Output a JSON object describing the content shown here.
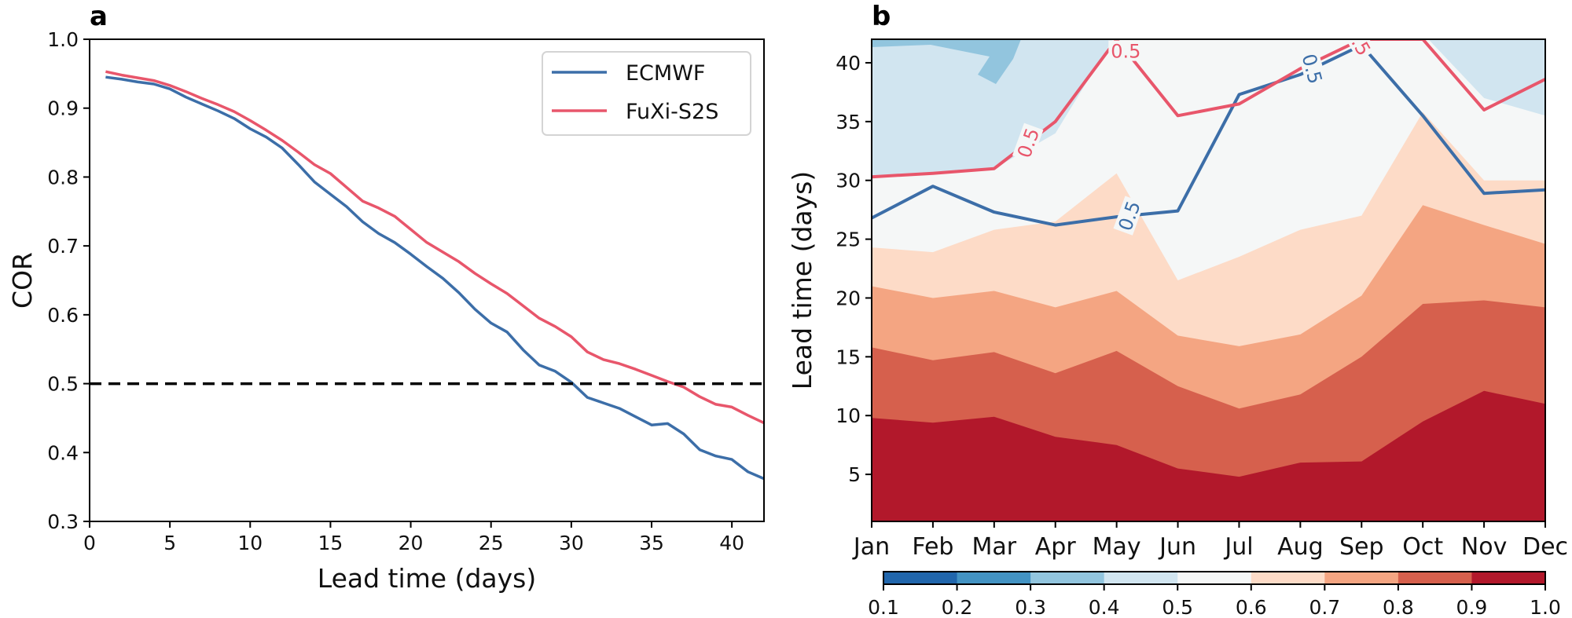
{
  "chart_data": [
    {
      "panel": "a",
      "type": "line",
      "title": "",
      "xlabel": "Lead time (days)",
      "ylabel": "COR",
      "xlim": [
        0,
        42
      ],
      "ylim": [
        0.3,
        1.0
      ],
      "xticks": [
        0,
        5,
        10,
        15,
        20,
        25,
        30,
        35,
        40
      ],
      "yticks": [
        0.3,
        0.4,
        0.5,
        0.6,
        0.7,
        0.8,
        0.9,
        1.0
      ],
      "ytick_labels": [
        "0.3",
        "0.4",
        "0.5",
        "0.6",
        "0.7",
        "0.8",
        "0.9",
        "1.0"
      ],
      "grid": false,
      "legend_position": "top-right",
      "reference_line": {
        "y": 0.5,
        "style": "dashed",
        "color": "#000000"
      },
      "x": [
        1,
        2,
        3,
        4,
        5,
        6,
        7,
        8,
        9,
        10,
        11,
        12,
        13,
        14,
        15,
        16,
        17,
        18,
        19,
        20,
        21,
        22,
        23,
        24,
        25,
        26,
        27,
        28,
        29,
        30,
        31,
        32,
        33,
        34,
        35,
        36,
        37,
        38,
        39,
        40,
        41,
        42
      ],
      "series": [
        {
          "name": "ECMWF",
          "color": "#3c6ea8",
          "values": [
            0.945,
            0.942,
            0.938,
            0.935,
            0.928,
            0.916,
            0.906,
            0.896,
            0.885,
            0.87,
            0.858,
            0.842,
            0.818,
            0.793,
            0.775,
            0.757,
            0.735,
            0.718,
            0.705,
            0.688,
            0.67,
            0.653,
            0.632,
            0.608,
            0.588,
            0.575,
            0.549,
            0.527,
            0.518,
            0.502,
            0.48,
            0.472,
            0.464,
            0.452,
            0.44,
            0.442,
            0.427,
            0.404,
            0.395,
            0.39,
            0.372,
            0.362
          ]
        },
        {
          "name": "FuXi-S2S",
          "color": "#e8566b",
          "values": [
            0.953,
            0.948,
            0.944,
            0.94,
            0.933,
            0.924,
            0.914,
            0.905,
            0.895,
            0.882,
            0.868,
            0.853,
            0.836,
            0.818,
            0.805,
            0.785,
            0.765,
            0.755,
            0.743,
            0.724,
            0.705,
            0.691,
            0.677,
            0.66,
            0.645,
            0.631,
            0.613,
            0.595,
            0.583,
            0.568,
            0.546,
            0.535,
            0.529,
            0.521,
            0.512,
            0.503,
            0.495,
            0.481,
            0.47,
            0.466,
            0.454,
            0.443
          ]
        }
      ]
    },
    {
      "panel": "b",
      "type": "heatmap",
      "subtype": "filled-contour",
      "xlabel": "",
      "ylabel": "Lead time (days)",
      "categories": [
        "Jan",
        "Feb",
        "Mar",
        "Apr",
        "May",
        "Jun",
        "Jul",
        "Aug",
        "Sep",
        "Oct",
        "Nov",
        "Dec"
      ],
      "ylim": [
        1,
        42
      ],
      "yticks": [
        5,
        10,
        15,
        20,
        25,
        30,
        35,
        40
      ],
      "grid": false,
      "colorbar": {
        "position": "bottom",
        "levels": [
          0.1,
          0.2,
          0.3,
          0.4,
          0.5,
          0.6,
          0.7,
          0.8,
          0.9,
          1.0
        ],
        "tick_labels": [
          "0.1",
          "0.2",
          "0.3",
          "0.4",
          "0.5",
          "0.6",
          "0.7",
          "0.8",
          "0.9",
          "1.0"
        ],
        "colors": [
          "#2166ac",
          "#4393c3",
          "#92c5de",
          "#d1e5f0",
          "#f5f7f7",
          "#fddbc7",
          "#f4a582",
          "#d6604d",
          "#b2182b"
        ]
      },
      "level_boundaries_lead_days": {
        "0.9": [
          9.8,
          9.4,
          9.9,
          8.2,
          7.5,
          5.5,
          4.8,
          6.0,
          6.1,
          9.5,
          12.1,
          11.0
        ],
        "0.8": [
          15.8,
          14.7,
          15.4,
          13.6,
          15.5,
          12.5,
          10.6,
          11.8,
          15.0,
          19.5,
          19.8,
          19.2
        ],
        "0.7": [
          21.0,
          20.0,
          20.6,
          19.2,
          20.6,
          16.8,
          15.9,
          16.9,
          20.2,
          27.9,
          26.2,
          24.6
        ],
        "0.6": [
          24.3,
          23.9,
          25.8,
          26.5,
          30.6,
          21.5,
          23.5,
          25.8,
          27.0,
          35.8,
          30.0,
          30.0
        ]
      },
      "contours": [
        {
          "name": "ECMWF",
          "level": 0.5,
          "label": "0.5",
          "color": "#3c6ea8",
          "lead_days": [
            26.8,
            29.5,
            27.3,
            26.2,
            26.9,
            27.4,
            37.3,
            39.0,
            41.5,
            35.5,
            28.9,
            29.2
          ]
        },
        {
          "name": "FuXi-S2S",
          "level": 0.5,
          "label": "0.5",
          "color": "#e8566b",
          "lead_days": [
            30.3,
            30.6,
            31.0,
            35.0,
            42.0,
            35.5,
            36.5,
            39.5,
            42.0,
            42.0,
            36.0,
            38.6
          ]
        }
      ]
    }
  ],
  "panels": {
    "a": {
      "label": "a"
    },
    "b": {
      "label": "b"
    }
  }
}
